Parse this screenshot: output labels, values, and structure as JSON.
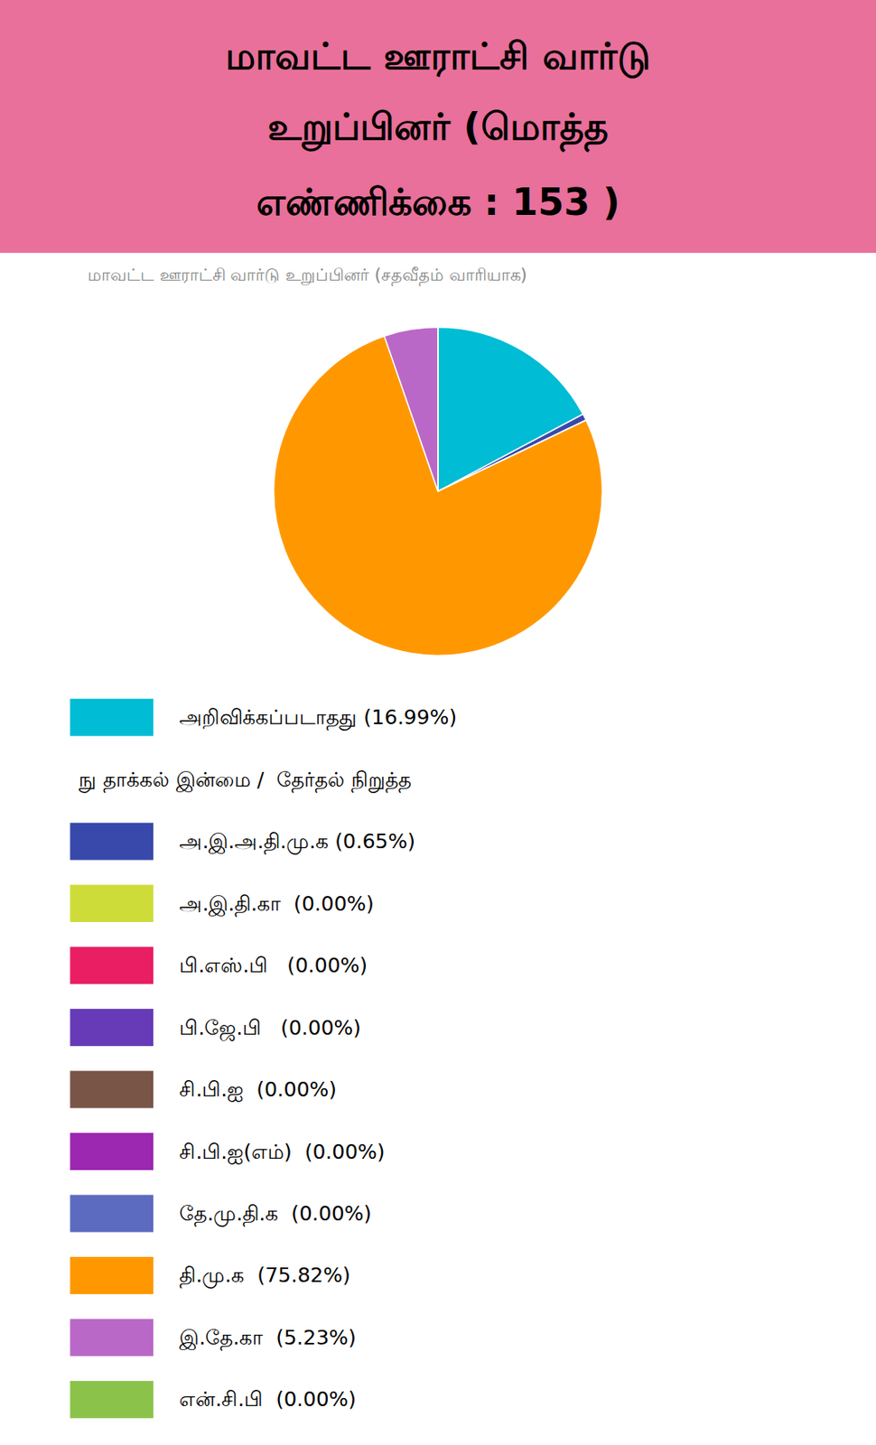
{
  "chart_data": {
    "type": "pie",
    "title": [
      "மாவட்ட ஊராட்சி வார்டு",
      "உறுப்பினர் (மொத்த",
      "எண்ணிக்கை : 153 )"
    ],
    "title_bg_color": "#E8709A",
    "bg_color": "#FFFFFF",
    "subtitle": "மாவட்ட ஊராட்சி வார்டு உறுப்பினர் (சதவீதம் வாரியாக)",
    "values": [
      16.99,
      0.65,
      0.0001,
      0.0001,
      0.0001,
      0.0001,
      0.0001,
      75.82,
      5.23,
      0.0001
    ],
    "colors": [
      "#00BCD4",
      "#3949AB",
      "#CDDC39",
      "#E91E63",
      "#673AB7",
      "#795548",
      "#9C27B0",
      "#FF9800",
      "#BA68C8",
      "#8BC34A"
    ],
    "legend_entries": [
      {
        "label": "அறிவிக்கப்படாதது (16.99%)",
        "color": "#00BCD4"
      },
      {
        "label": "நு தாக்கல் இன்மை /  தேர்தல் நிறுத்த",
        "color": null
      },
      {
        "label": "அ.இ.அ.தி.மு.க (0.65%)",
        "color": "#3949AB"
      },
      {
        "label": "அ.இ.தி.கா  (0.00%)",
        "color": "#CDDC39"
      },
      {
        "label": "பி.எஸ்.பி   (0.00%)",
        "color": "#E91E63"
      },
      {
        "label": "பி.ஜே.பி   (0.00%)",
        "color": "#673AB7"
      },
      {
        "label": "சி.பி.ஐ  (0.00%)",
        "color": "#795548"
      },
      {
        "label": "சி.பி.ஐ(எம்)  (0.00%)",
        "color": "#9C27B0"
      },
      {
        "label": "தே.மு.தி.க  (0.00%)",
        "color": "#5C6BC0"
      },
      {
        "label": "தி.மு.க  (75.82%)",
        "color": "#FF9800"
      },
      {
        "label": "இ.தே.கா  (5.23%)",
        "color": "#BA68C8"
      },
      {
        "label": "என்.சி.பி  (0.00%)",
        "color": "#8BC34A"
      }
    ]
  }
}
